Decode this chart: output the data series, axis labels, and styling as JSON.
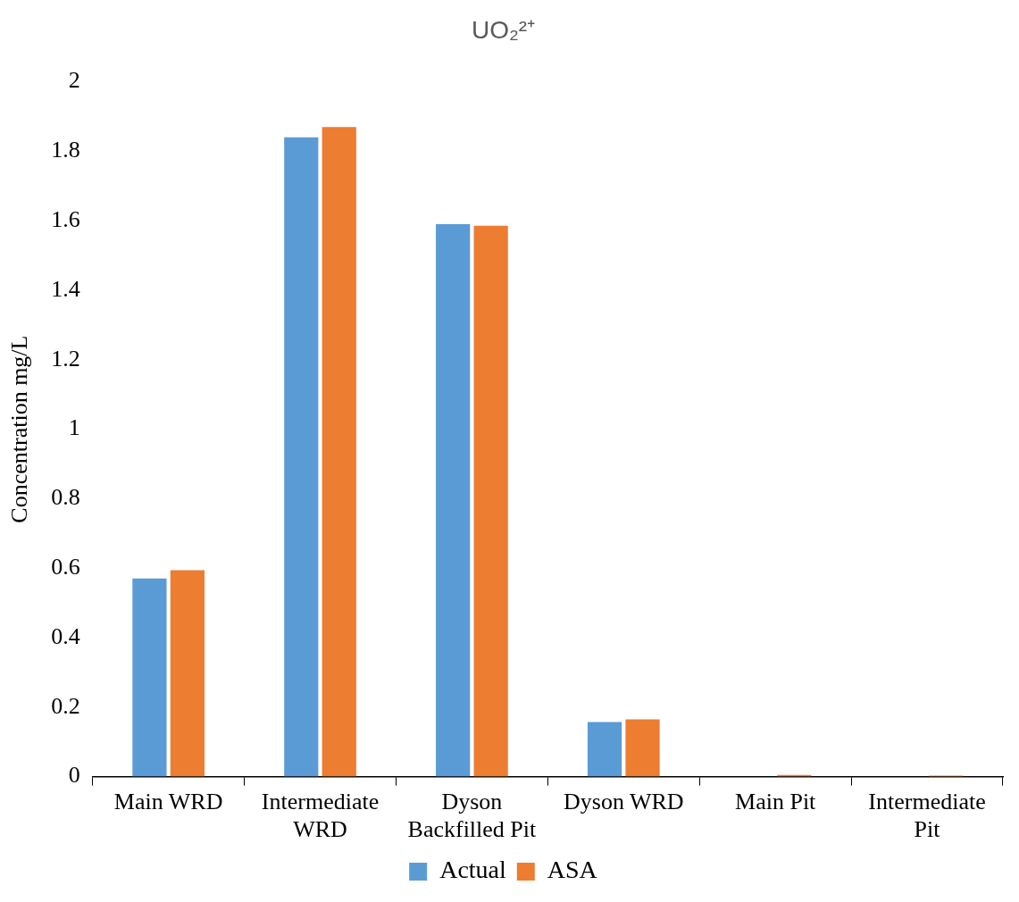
{
  "chart_data": {
    "type": "bar",
    "title": "UO₂²⁺",
    "ylabel": "Concentration mg/L",
    "categories": [
      "Main WRD",
      "Intermediate WRD",
      "Dyson Backfilled Pit",
      "Dyson WRD",
      "Main Pit",
      "Intermediate Pit"
    ],
    "series": [
      {
        "name": "Actual",
        "color": "#5b9bd5",
        "values": [
          0.57,
          1.84,
          1.59,
          0.157,
          null,
          null
        ]
      },
      {
        "name": "ASA",
        "color": "#ed7d31",
        "values": [
          0.594,
          1.87,
          1.586,
          0.165,
          0.005,
          0.003
        ]
      }
    ],
    "ylim": [
      0,
      2
    ],
    "yticks": [
      0,
      0.2,
      0.4,
      0.6,
      0.8,
      1,
      1.2,
      1.4,
      1.6,
      1.8,
      2
    ],
    "grid": false,
    "legend": "bottom"
  }
}
